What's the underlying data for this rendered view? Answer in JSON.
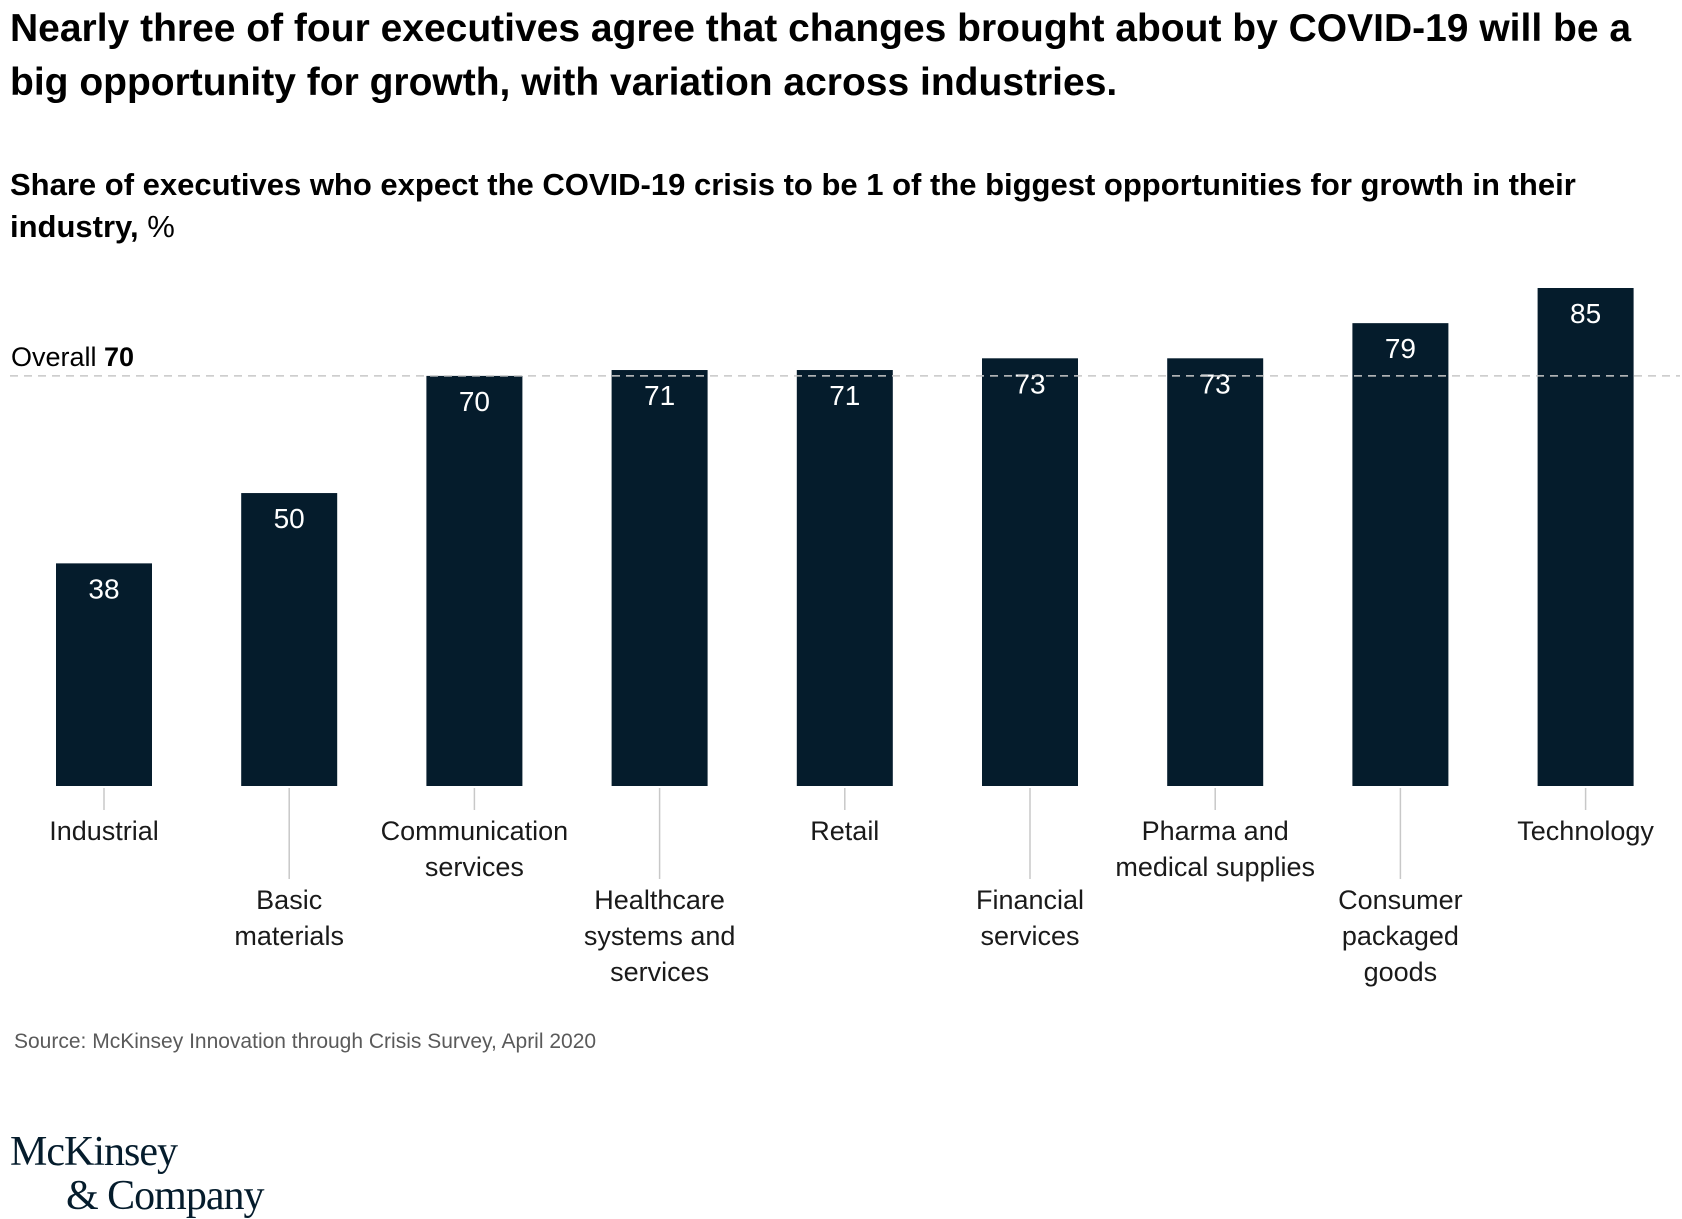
{
  "title": "Nearly three of four executives agree that changes brought about by COVID-19 will be a big opportunity for growth, with variation across industries.",
  "subtitle": "Share of executives who expect the COVID-19 crisis to be 1 of the biggest opportunities for growth in their industry,",
  "subtitle_unit": "%",
  "source": "Source: McKinsey Innovation through Crisis Survey, April 2020",
  "logo": {
    "line1": "McKinsey",
    "line2": "& Company"
  },
  "colors": {
    "bar": "#051c2c",
    "bar_label": "#ffffff",
    "reference_line": "#c8c8c8",
    "axis_text": "#1a1a1a",
    "leader": "#c8c8c8"
  },
  "chart_data": {
    "type": "bar",
    "categories": [
      [
        "Industrial"
      ],
      [
        "Basic",
        "materials"
      ],
      [
        "Communication",
        "services"
      ],
      [
        "Healthcare",
        "systems and",
        "services"
      ],
      [
        "Retail"
      ],
      [
        "Financial",
        "services"
      ],
      [
        "Pharma and",
        "medical supplies"
      ],
      [
        "Consumer",
        "packaged",
        "goods"
      ],
      [
        "Technology"
      ]
    ],
    "values": [
      38,
      50,
      70,
      71,
      71,
      73,
      73,
      79,
      85
    ],
    "ylim": [
      0,
      85
    ],
    "grid": false,
    "reference_line": {
      "label": "Overall",
      "value": 70
    }
  }
}
